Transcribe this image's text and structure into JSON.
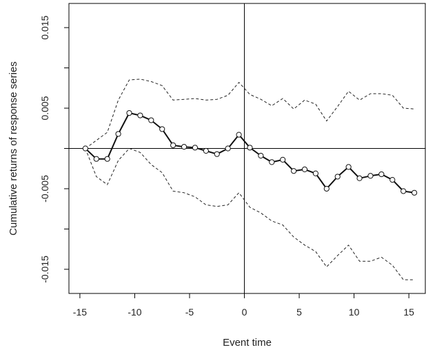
{
  "chart_data": {
    "type": "line",
    "title": "",
    "xlabel": "Event time",
    "ylabel": "Cumulative returns of response series",
    "xlim": [
      -16,
      16.5
    ],
    "ylim": [
      -0.018,
      0.018
    ],
    "x_ticks": [
      -15,
      -10,
      -5,
      0,
      5,
      10,
      15
    ],
    "x_tick_labels": [
      "-15",
      "-10",
      "-5",
      "0",
      "5",
      "10",
      "15"
    ],
    "y_ticks": [
      0.015,
      0.01,
      0.005,
      0.0,
      -0.005,
      -0.01,
      -0.015
    ],
    "y_tick_labels": [
      "0.015",
      "",
      "0.005",
      "",
      "-0.005",
      "",
      "-0.015"
    ],
    "reference_lines": {
      "x": 0,
      "y": 0
    },
    "grid": false,
    "x": [
      -14.5,
      -13.5,
      -12.5,
      -11.5,
      -10.5,
      -9.5,
      -8.5,
      -7.5,
      -6.5,
      -5.5,
      -4.5,
      -3.5,
      -2.5,
      -1.5,
      -0.5,
      0.5,
      1.5,
      2.5,
      3.5,
      4.5,
      5.5,
      6.5,
      7.5,
      8.5,
      9.5,
      10.5,
      11.5,
      12.5,
      13.5,
      14.5,
      15.5
    ],
    "series": [
      {
        "role": "estimate",
        "style": "solid",
        "color": "#111111",
        "markers": "open-circle",
        "values": [
          0.0,
          -0.0013,
          -0.0013,
          0.0018,
          0.0044,
          0.0041,
          0.0035,
          0.0024,
          0.0004,
          0.0002,
          0.0001,
          -0.0003,
          -0.0007,
          0.0,
          0.0017,
          0.0001,
          -0.0009,
          -0.0017,
          -0.0014,
          -0.0028,
          -0.0026,
          -0.0031,
          -0.005,
          -0.0035,
          -0.0023,
          -0.0037,
          -0.0034,
          -0.0032,
          -0.0039,
          -0.0053,
          -0.0055
        ]
      },
      {
        "role": "upper-bound",
        "style": "dashed",
        "color": "#222222",
        "markers": "none",
        "values": [
          0.0,
          0.001,
          0.002,
          0.006,
          0.0085,
          0.0086,
          0.0083,
          0.0078,
          0.006,
          0.0061,
          0.0062,
          0.006,
          0.0061,
          0.0066,
          0.0082,
          0.0067,
          0.0061,
          0.0053,
          0.0062,
          0.0049,
          0.006,
          0.0055,
          0.0034,
          0.0052,
          0.0071,
          0.006,
          0.0068,
          0.0068,
          0.0066,
          0.005,
          0.0049
        ]
      },
      {
        "role": "lower-bound",
        "style": "dashed",
        "color": "#222222",
        "markers": "none",
        "values": [
          0.0,
          -0.0035,
          -0.0045,
          -0.0015,
          0.0,
          -0.0005,
          -0.002,
          -0.003,
          -0.0053,
          -0.0055,
          -0.006,
          -0.007,
          -0.0072,
          -0.007,
          -0.0055,
          -0.0073,
          -0.008,
          -0.009,
          -0.0095,
          -0.011,
          -0.012,
          -0.0128,
          -0.0147,
          -0.0133,
          -0.012,
          -0.014,
          -0.014,
          -0.0135,
          -0.0145,
          -0.0163,
          -0.0163
        ]
      }
    ]
  }
}
